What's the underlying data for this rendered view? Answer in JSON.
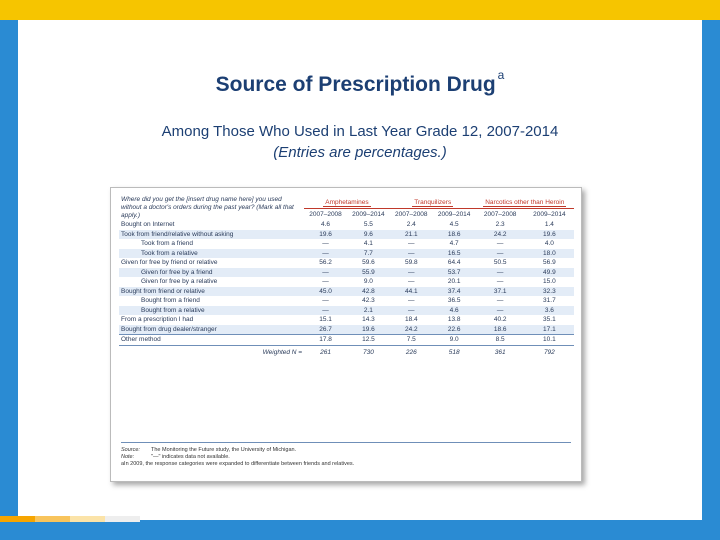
{
  "slide": {
    "title": "Source of Prescription Drug",
    "title_superscript": "a",
    "subtitle_line1": "Among Those Who Used in Last Year Grade 12, 2007-2014",
    "subtitle_line2": "(Entries are percentages.)",
    "accent_color": "#f6c500",
    "background_color": "#2a8bd3"
  },
  "table": {
    "question": "Where did you get the [insert drug name here] you used without a doctor's orders during the past year? (Mark all that apply.)",
    "groups": [
      "Amphetamines",
      "Tranquilizers",
      "Narcotics other than Heroin"
    ],
    "years": [
      "2007–2008",
      "2009–2014",
      "2007–2008",
      "2009–2014",
      "2007–2008",
      "2009–2014"
    ],
    "rows": [
      {
        "label": "Bought on Internet",
        "values": [
          "4.6",
          "5.5",
          "2.4",
          "4.5",
          "2.3",
          "1.4"
        ]
      },
      {
        "label": "Took from friend/relative without asking",
        "values": [
          "19.6",
          "9.6",
          "21.1",
          "18.6",
          "24.2",
          "19.6"
        ]
      },
      {
        "label": "Took from a friend",
        "values": [
          "—",
          "4.1",
          "—",
          "4.7",
          "—",
          "4.0"
        ]
      },
      {
        "label": "Took from a relative",
        "values": [
          "—",
          "7.7",
          "—",
          "16.5",
          "—",
          "18.0"
        ]
      },
      {
        "label": "Given for free by friend or relative",
        "values": [
          "56.2",
          "59.6",
          "59.8",
          "64.4",
          "50.5",
          "56.9"
        ]
      },
      {
        "label": "Given for free by a friend",
        "values": [
          "—",
          "55.9",
          "—",
          "53.7",
          "—",
          "49.9"
        ]
      },
      {
        "label": "Given for free by a relative",
        "values": [
          "—",
          "9.0",
          "—",
          "20.1",
          "—",
          "15.0"
        ]
      },
      {
        "label": "Bought from friend or relative",
        "values": [
          "45.0",
          "42.8",
          "44.1",
          "37.4",
          "37.1",
          "32.3"
        ]
      },
      {
        "label": "Bought from a friend",
        "values": [
          "—",
          "42.3",
          "—",
          "36.5",
          "—",
          "31.7"
        ]
      },
      {
        "label": "Bought from a relative",
        "values": [
          "—",
          "2.1",
          "—",
          "4.6",
          "—",
          "3.6"
        ]
      },
      {
        "label": "From a prescription I had",
        "values": [
          "15.1",
          "14.3",
          "18.4",
          "13.8",
          "40.2",
          "35.1"
        ]
      },
      {
        "label": "Bought from drug dealer/stranger",
        "values": [
          "26.7",
          "19.6",
          "24.2",
          "22.6",
          "18.6",
          "17.1"
        ]
      },
      {
        "label": "Other method",
        "values": [
          "17.8",
          "12.5",
          "7.5",
          "9.0",
          "8.5",
          "10.1"
        ]
      }
    ],
    "weighted_label": "Weighted N =",
    "weighted_values": [
      "261",
      "730",
      "226",
      "518",
      "361",
      "792"
    ],
    "source_key": "Source:",
    "source_text": "The Monitoring the Future study, the University of Michigan.",
    "note_key": "Note:",
    "note_text": "\"—\" indicates data not available.",
    "footnote": "aIn 2009, the response categories were expanded to differentiate between friends and relatives."
  }
}
